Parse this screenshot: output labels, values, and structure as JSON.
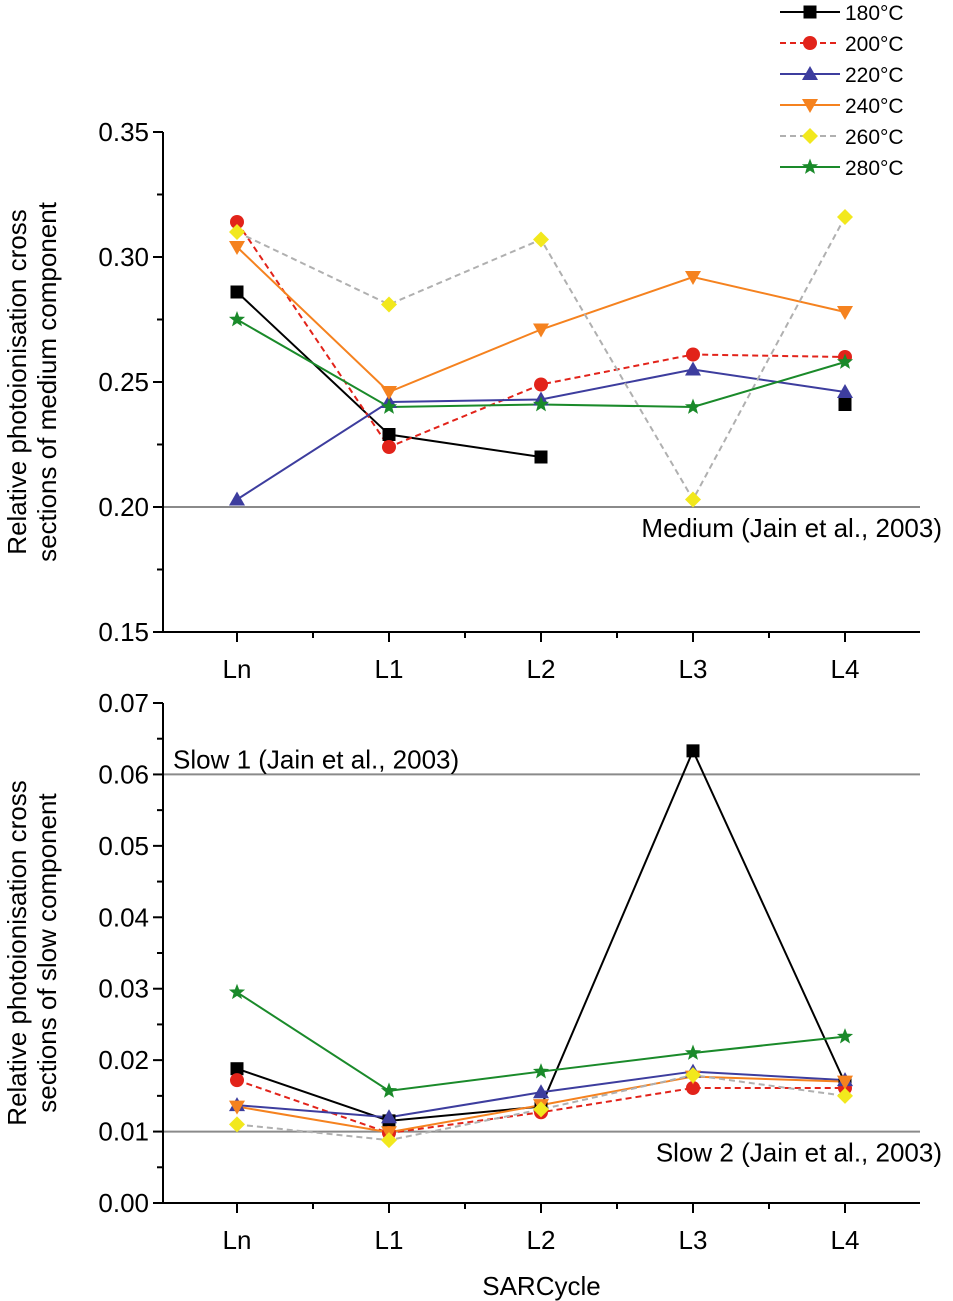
{
  "legend": {
    "entries": [
      {
        "label": "180°C",
        "color": "#000000",
        "marker": "square",
        "dash": "solid"
      },
      {
        "label": "200°C",
        "color": "#e2231a",
        "marker": "circle",
        "dash": "dashed"
      },
      {
        "label": "220°C",
        "color": "#3d3d9e",
        "marker": "triangle-up",
        "dash": "solid"
      },
      {
        "label": "240°C",
        "color": "#f5821f",
        "marker": "triangle-down",
        "dash": "solid"
      },
      {
        "label": "260°C",
        "color": "#f2e81d",
        "line_color": "#b0b0b0",
        "marker": "diamond",
        "dash": "dashed"
      },
      {
        "label": "280°C",
        "color": "#1a8a2a",
        "marker": "star",
        "dash": "solid"
      }
    ]
  },
  "chart_data": [
    {
      "type": "line",
      "categories": [
        "Ln",
        "L1",
        "L2",
        "L3",
        "L4"
      ],
      "ylabel": [
        "Relative photoionisation cross",
        "sections of medium component"
      ],
      "xlabel": "",
      "ylim": [
        0.15,
        0.35
      ],
      "yticks": [
        "0.15",
        "0.20",
        "0.25",
        "0.30",
        "0.35"
      ],
      "ytick_values": [
        0.15,
        0.2,
        0.25,
        0.3,
        0.35
      ],
      "reference_lines": [
        {
          "y": 0.2,
          "label": "Medium (Jain et al., 2003)",
          "label_anchor": "end",
          "label_position": "below"
        }
      ],
      "series": [
        {
          "name": "180°C",
          "values": [
            0.286,
            0.229,
            0.22,
            null,
            0.241
          ],
          "segments": [
            [
              0,
              2
            ],
            [
              4,
              4
            ]
          ]
        },
        {
          "name": "200°C",
          "values": [
            0.314,
            0.224,
            0.249,
            0.261,
            0.26
          ]
        },
        {
          "name": "220°C",
          "values": [
            0.203,
            0.242,
            0.243,
            0.255,
            0.246
          ]
        },
        {
          "name": "240°C",
          "values": [
            0.304,
            0.246,
            0.271,
            0.292,
            0.278
          ]
        },
        {
          "name": "260°C",
          "values": [
            0.31,
            0.281,
            0.307,
            0.203,
            0.316
          ]
        },
        {
          "name": "280°C",
          "values": [
            0.275,
            0.24,
            0.241,
            0.24,
            0.258
          ]
        }
      ]
    },
    {
      "type": "line",
      "categories": [
        "Ln",
        "L1",
        "L2",
        "L3",
        "L4"
      ],
      "ylabel": [
        "Relative photoionisation cross",
        "sections of slow component"
      ],
      "xlabel": "SARCycle",
      "ylim": [
        0.0,
        0.07
      ],
      "yticks": [
        "0.00",
        "0.01",
        "0.02",
        "0.03",
        "0.04",
        "0.05",
        "0.06",
        "0.07"
      ],
      "ytick_values": [
        0.0,
        0.01,
        0.02,
        0.03,
        0.04,
        0.05,
        0.06,
        0.07
      ],
      "reference_lines": [
        {
          "y": 0.06,
          "label": "Slow 1 (Jain et al., 2003)",
          "label_anchor": "start",
          "label_position": "above"
        },
        {
          "y": 0.01,
          "label": "Slow 2 (Jain et al., 2003)",
          "label_anchor": "end",
          "label_position": "below"
        }
      ],
      "series": [
        {
          "name": "180°C",
          "values": [
            0.0188,
            0.0115,
            0.0135,
            0.0633,
            0.0168
          ]
        },
        {
          "name": "200°C",
          "values": [
            0.0172,
            0.0098,
            0.0127,
            0.0161,
            0.0161
          ]
        },
        {
          "name": "220°C",
          "values": [
            0.0137,
            0.012,
            0.0155,
            0.0184,
            0.0172
          ]
        },
        {
          "name": "240°C",
          "values": [
            0.0135,
            0.0099,
            0.0137,
            0.0177,
            0.017
          ]
        },
        {
          "name": "260°C",
          "values": [
            0.011,
            0.0088,
            0.0131,
            0.0179,
            0.015
          ]
        },
        {
          "name": "280°C",
          "values": [
            0.0295,
            0.0157,
            0.0184,
            0.021,
            0.0233
          ]
        }
      ]
    }
  ]
}
